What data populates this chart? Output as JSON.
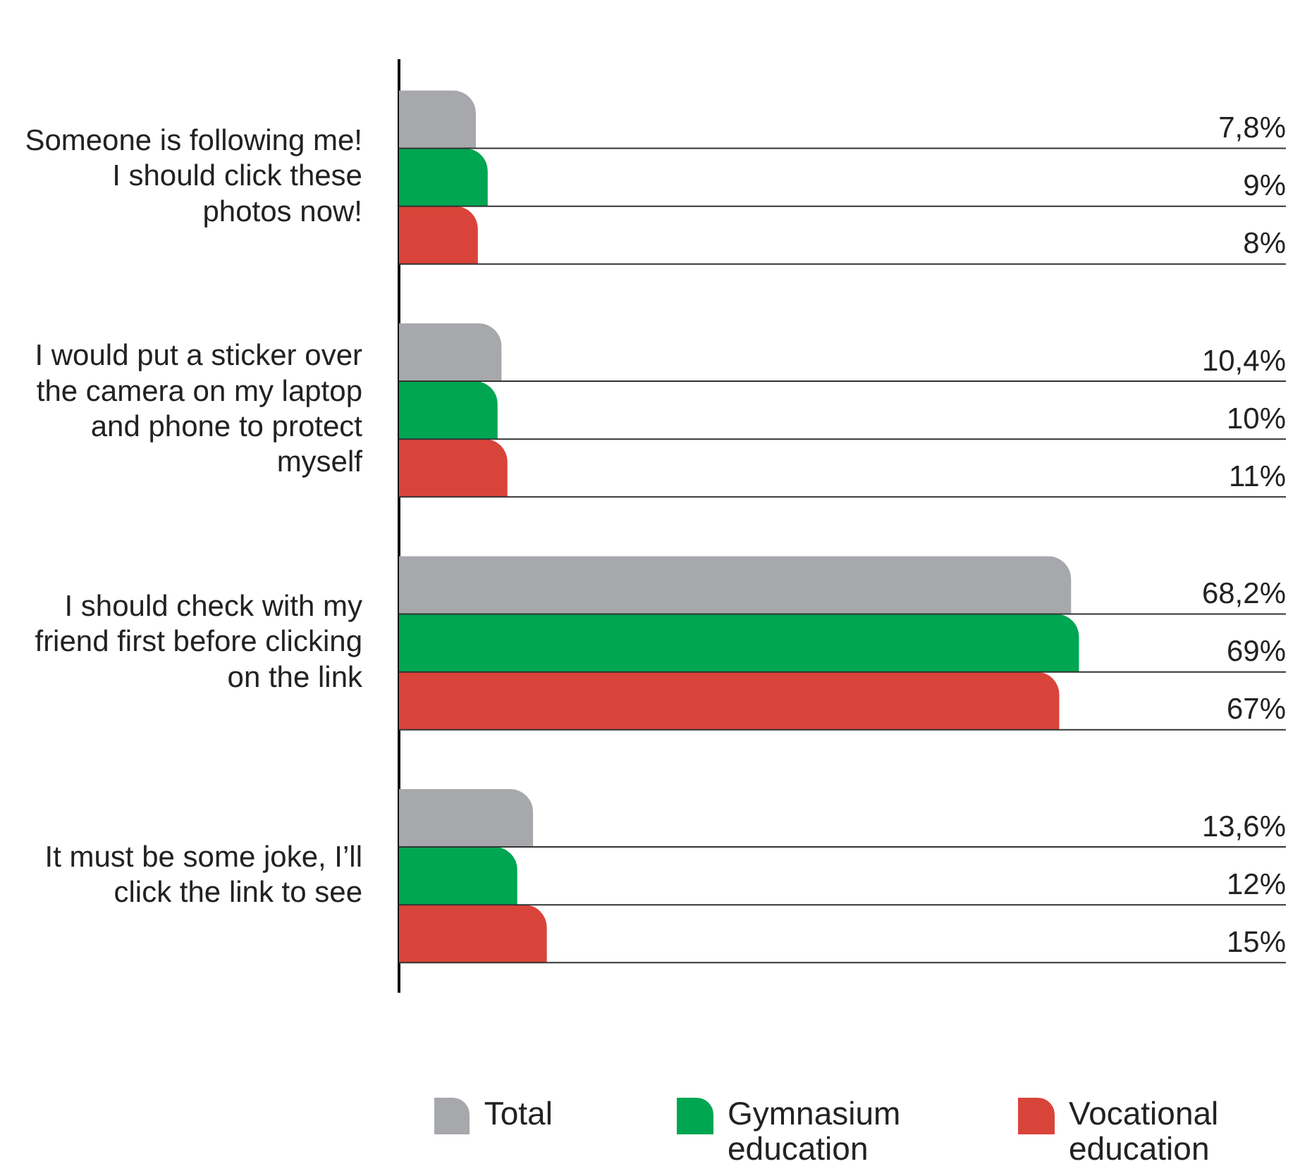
{
  "chart_data": {
    "type": "bar",
    "orientation": "horizontal",
    "categories": [
      "Someone is following me! I should click these photos now!",
      "I would put a sticker over the camera on my laptop and phone to protect myself",
      "I should check with my friend first before clicking on the link",
      "It must be some joke, I’ll click the link to see"
    ],
    "xlim": [
      0,
      90
    ],
    "legend": "bottom",
    "series": [
      {
        "name": "Total",
        "color": "#a7a8ab",
        "values": [
          7.8,
          10.4,
          68.2,
          13.6
        ],
        "value_labels": [
          "7,8%",
          "10,4%",
          "68,2%",
          "13,6%"
        ]
      },
      {
        "name": "Gymnasium education",
        "color": "#00a651",
        "values": [
          9,
          10,
          69,
          12
        ],
        "value_labels": [
          "9%",
          "10%",
          "69%",
          "12%"
        ]
      },
      {
        "name": "Vocational education",
        "color": "#d9443a",
        "values": [
          8,
          11,
          67,
          15
        ],
        "value_labels": [
          "8%",
          "11%",
          "67%",
          "15%"
        ]
      }
    ]
  }
}
